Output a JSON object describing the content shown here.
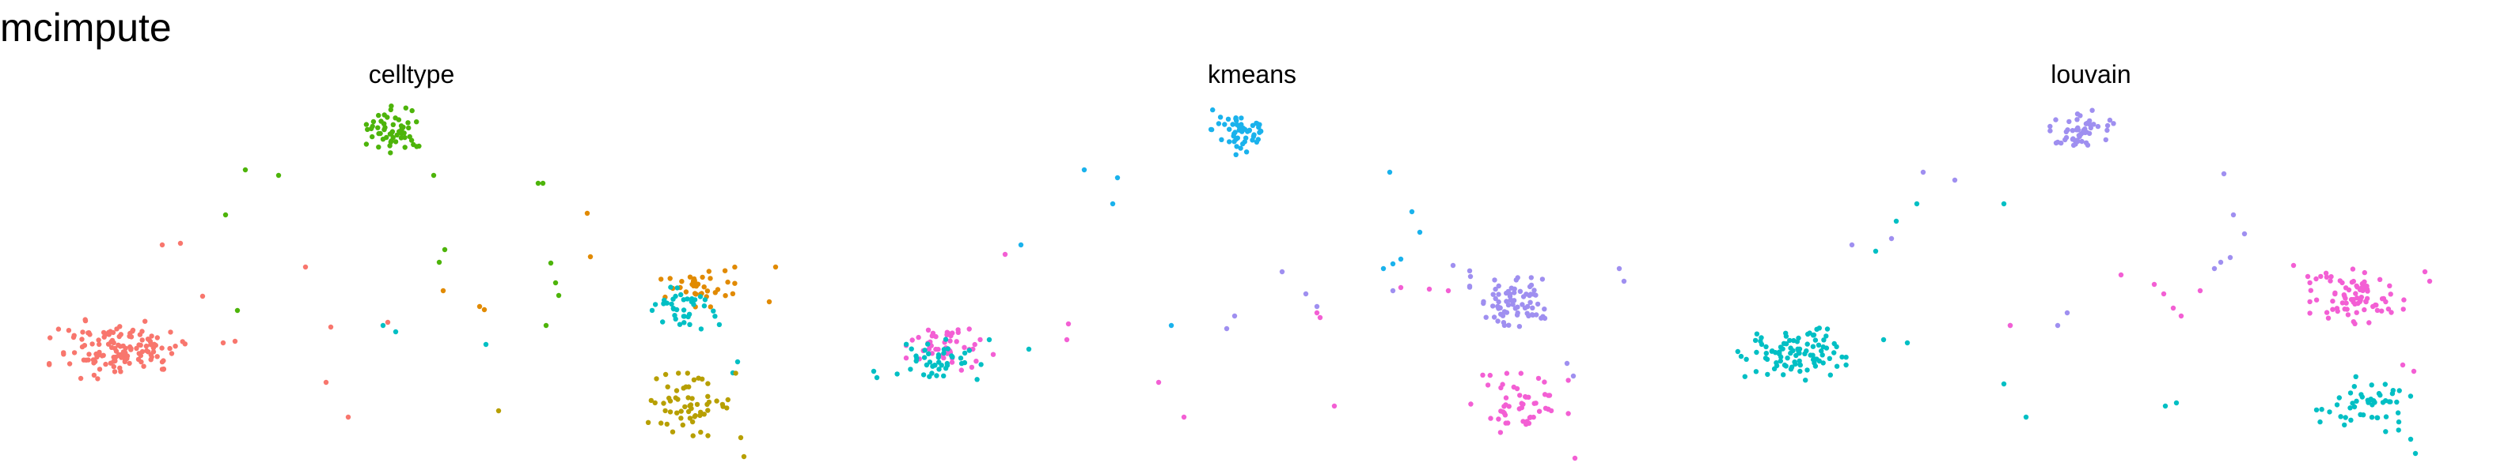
{
  "figure": {
    "title": "mcimpute"
  },
  "colors": {
    "red": "#F8766D",
    "olive": "#B79F00",
    "green": "#4DB40A",
    "cyan": "#00BFC4",
    "sky": "#1AB2EC",
    "purple": "#9F8FF0",
    "pink": "#F35FD4",
    "orange": "#E18A00"
  },
  "chart_data": [
    {
      "type": "scatter",
      "title": "celltype",
      "xlabel": "",
      "ylabel": "",
      "grid": false,
      "axes_visible": false,
      "series": [
        {
          "color_key": "green",
          "clusters": [
            {
              "center": [
                500,
                165
              ],
              "spread": [
                36,
                28
              ],
              "count": 55
            }
          ],
          "points": [
            [
              310,
              215
            ],
            [
              352,
              222
            ],
            [
              285,
              272
            ],
            [
              300,
              393
            ],
            [
              548,
              222
            ],
            [
              555,
              332
            ],
            [
              562,
              316
            ],
            [
              686,
              232
            ],
            [
              696,
              333
            ],
            [
              702,
              358
            ],
            [
              706,
              374
            ],
            [
              690,
              412
            ],
            [
              680,
              232
            ]
          ]
        },
        {
          "color_key": "red",
          "clusters": [
            {
              "center": [
                148,
                442
              ],
              "spread": [
                78,
                34
              ],
              "count": 135
            }
          ],
          "points": [
            [
              205,
              310
            ],
            [
              228,
              308
            ],
            [
              256,
              375
            ],
            [
              282,
              434
            ],
            [
              297,
              432
            ],
            [
              386,
              338
            ],
            [
              418,
              414
            ],
            [
              412,
              484
            ],
            [
              440,
              528
            ],
            [
              490,
              408
            ]
          ]
        },
        {
          "color_key": "orange",
          "clusters": [
            {
              "center": [
                880,
                362
              ],
              "spread": [
                44,
                24
              ],
              "count": 36
            }
          ],
          "points": [
            [
              742,
              270
            ],
            [
              746,
              325
            ],
            [
              560,
              368
            ],
            [
              606,
              388
            ],
            [
              612,
              392
            ],
            [
              980,
              338
            ],
            [
              972,
              382
            ]
          ]
        },
        {
          "color_key": "cyan",
          "clusters": [
            {
              "center": [
                868,
                390
              ],
              "spread": [
                40,
                24
              ],
              "count": 38
            }
          ],
          "points": [
            [
              614,
              436
            ],
            [
              932,
              458
            ],
            [
              926,
              472
            ],
            [
              484,
              412
            ],
            [
              500,
              420
            ]
          ]
        },
        {
          "color_key": "olive",
          "clusters": [
            {
              "center": [
                868,
                512
              ],
              "spread": [
                56,
                36
              ],
              "count": 58
            }
          ],
          "points": [
            [
              630,
              520
            ],
            [
              936,
              554
            ],
            [
              940,
              578
            ]
          ]
        }
      ]
    },
    {
      "type": "scatter",
      "title": "kmeans",
      "xlabel": "",
      "ylabel": "",
      "grid": false,
      "axes_visible": false,
      "series": [
        {
          "color_key": "sky",
          "clusters": [
            {
              "center": [
                1570,
                165
              ],
              "spread": [
                38,
                28
              ],
              "count": 52
            }
          ],
          "points": [
            [
              1370,
              215
            ],
            [
              1412,
              225
            ],
            [
              1290,
              310
            ],
            [
              1406,
              258
            ],
            [
              1756,
              218
            ],
            [
              1760,
              334
            ],
            [
              1770,
              328
            ],
            [
              1748,
              340
            ],
            [
              1784,
              268
            ],
            [
              1794,
              294
            ],
            [
              1480,
              412
            ]
          ]
        },
        {
          "color_key": "purple",
          "clusters": [
            {
              "center": [
                1912,
                378
              ],
              "spread": [
                50,
                32
              ],
              "count": 75
            }
          ],
          "points": [
            [
              1620,
              344
            ],
            [
              1650,
              372
            ],
            [
              1664,
              388
            ],
            [
              1760,
              368
            ],
            [
              1836,
              336
            ],
            [
              1858,
              350
            ],
            [
              1560,
              400
            ],
            [
              1550,
              416
            ],
            [
              1980,
              460
            ],
            [
              1988,
              476
            ],
            [
              2046,
              340
            ],
            [
              2052,
              356
            ]
          ]
        },
        {
          "color_key": "pink",
          "clusters": [
            {
              "center": [
                1200,
                440
              ],
              "spread": [
                50,
                26
              ],
              "count": 48
            },
            {
              "center": [
                1920,
                510
              ],
              "spread": [
                56,
                34
              ],
              "count": 52
            }
          ],
          "points": [
            [
              1270,
              322
            ],
            [
              1350,
              410
            ],
            [
              1348,
              430
            ],
            [
              1464,
              484
            ],
            [
              1496,
              528
            ],
            [
              1664,
              396
            ],
            [
              1668,
              402
            ],
            [
              1686,
              514
            ],
            [
              1770,
              364
            ],
            [
              1806,
              366
            ],
            [
              1830,
              368
            ],
            [
              1990,
              580
            ]
          ]
        },
        {
          "color_key": "cyan",
          "clusters": [
            {
              "center": [
                1178,
                456
              ],
              "spread": [
                56,
                24
              ],
              "count": 42
            }
          ],
          "points": [
            [
              1104,
              470
            ],
            [
              1108,
              478
            ],
            [
              1250,
              430
            ],
            [
              1300,
              442
            ]
          ]
        }
      ]
    },
    {
      "type": "scatter",
      "title": "louvain",
      "xlabel": "",
      "ylabel": "",
      "grid": false,
      "axes_visible": false,
      "series": [
        {
          "color_key": "purple",
          "clusters": [
            {
              "center": [
                2630,
                165
              ],
              "spread": [
                38,
                28
              ],
              "count": 52
            }
          ],
          "points": [
            [
              2430,
              218
            ],
            [
              2470,
              228
            ],
            [
              2340,
              310
            ],
            [
              2390,
              302
            ],
            [
              2810,
              220
            ],
            [
              2806,
              332
            ],
            [
              2818,
              326
            ],
            [
              2798,
              340
            ],
            [
              2822,
              272
            ],
            [
              2836,
              296
            ],
            [
              2540,
              412
            ],
            [
              2600,
              412
            ],
            [
              2612,
              396
            ]
          ]
        },
        {
          "color_key": "pink",
          "clusters": [
            {
              "center": [
                2978,
                378
              ],
              "spread": [
                54,
                34
              ],
              "count": 80
            }
          ],
          "points": [
            [
              2680,
              348
            ],
            [
              2722,
              360
            ],
            [
              2734,
              372
            ],
            [
              2780,
              368
            ],
            [
              2898,
              336
            ],
            [
              2916,
              350
            ],
            [
              2540,
              412
            ],
            [
              3036,
              462
            ],
            [
              3050,
              470
            ],
            [
              3064,
              344
            ],
            [
              3070,
              356
            ],
            [
              2746,
              390
            ],
            [
              2756,
              400
            ]
          ]
        },
        {
          "color_key": "cyan",
          "clusters": [
            {
              "center": [
                2260,
                446
              ],
              "spread": [
                66,
                32
              ],
              "count": 95
            },
            {
              "center": [
                2990,
                512
              ],
              "spread": [
                58,
                32
              ],
              "count": 50
            }
          ],
          "points": [
            [
              2370,
              318
            ],
            [
              2396,
              280
            ],
            [
              2422,
              258
            ],
            [
              2532,
              258
            ],
            [
              2380,
              430
            ],
            [
              2410,
              434
            ],
            [
              2532,
              486
            ],
            [
              2560,
              528
            ],
            [
              2736,
              514
            ],
            [
              2750,
              510
            ],
            [
              3046,
              556
            ],
            [
              3052,
              574
            ]
          ]
        }
      ]
    }
  ]
}
